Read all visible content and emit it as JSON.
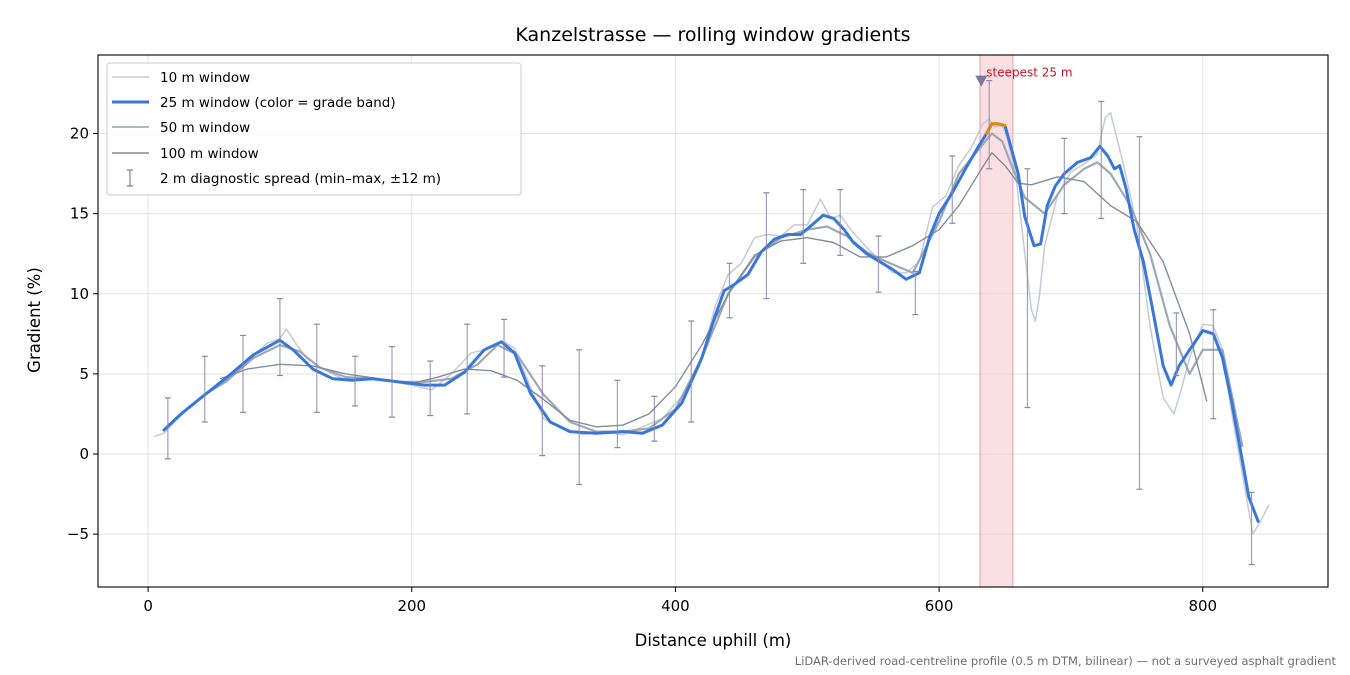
{
  "chart_data": {
    "type": "line",
    "title": "Kanzelstrasse — rolling window gradients",
    "xlabel": "Distance uphill (m)",
    "ylabel": "Gradient (%)",
    "xlim": [
      -38,
      895
    ],
    "ylim": [
      -8.3,
      24.9
    ],
    "xticks": [
      0,
      200,
      400,
      600,
      800
    ],
    "yticks": [
      -5,
      0,
      5,
      10,
      15,
      20
    ],
    "ytick_labels": [
      "−5",
      "0",
      "5",
      "10",
      "15",
      "20"
    ],
    "grid": true,
    "legend_position": "upper-left",
    "footnote": "LiDAR-derived road-centreline profile (0.5 m DTM, bilinear) — not a surveyed asphalt gradient",
    "series": [
      {
        "name": "10 m window",
        "color": "#c5cad5",
        "x": [
          5,
          12,
          20,
          30,
          45,
          60,
          75,
          90,
          100,
          105,
          112,
          120,
          135,
          150,
          165,
          180,
          200,
          215,
          230,
          245,
          255,
          265,
          270,
          278,
          290,
          300,
          315,
          330,
          345,
          360,
          375,
          390,
          405,
          420,
          430,
          440,
          450,
          460,
          470,
          480,
          490,
          500,
          510,
          518,
          525,
          535,
          545,
          555,
          565,
          575,
          585,
          595,
          605,
          615,
          625,
          633,
          638,
          642,
          648,
          652,
          658,
          665,
          670,
          673,
          676,
          680,
          690,
          700,
          710,
          720,
          726,
          730,
          740,
          750,
          760,
          770,
          778,
          783,
          790,
          800,
          808,
          815,
          822,
          830,
          838,
          845,
          850
        ],
        "y": [
          1.1,
          1.3,
          2.0,
          2.8,
          3.8,
          4.5,
          5.8,
          6.9,
          7.2,
          7.8,
          6.9,
          6.0,
          5.2,
          4.6,
          4.7,
          4.6,
          4.3,
          4.0,
          5.0,
          6.3,
          6.5,
          6.9,
          7.0,
          6.6,
          4.2,
          2.2,
          1.6,
          1.2,
          1.4,
          1.2,
          1.7,
          2.2,
          3.6,
          6.0,
          9.2,
          11.2,
          11.9,
          13.5,
          13.7,
          13.6,
          14.3,
          14.3,
          15.9,
          14.7,
          14.9,
          13.8,
          12.9,
          12.1,
          11.3,
          11.3,
          12.0,
          15.4,
          16.1,
          18.0,
          19.2,
          20.6,
          20.9,
          20.4,
          20.5,
          19.6,
          17.5,
          12.5,
          9.0,
          8.3,
          9.8,
          13.0,
          16.2,
          17.6,
          18.1,
          18.7,
          21.0,
          21.3,
          18.0,
          14.3,
          8.0,
          3.5,
          2.5,
          3.8,
          6.0,
          8.1,
          8.0,
          6.5,
          2.5,
          -1.2,
          -5.0,
          -4.0,
          -3.2
        ]
      },
      {
        "name": "25 m window (color = grade band)",
        "color": "#3a78d6",
        "band_color": "#e08b0c",
        "x": [
          12,
          25,
          40,
          60,
          80,
          100,
          110,
          125,
          140,
          155,
          170,
          190,
          210,
          225,
          240,
          255,
          268,
          278,
          290,
          305,
          320,
          340,
          360,
          375,
          390,
          405,
          420,
          430,
          437,
          445,
          455,
          465,
          475,
          485,
          495,
          505,
          512,
          520,
          528,
          535,
          545,
          555,
          565,
          575,
          585,
          593,
          600,
          610,
          620,
          630,
          636,
          640,
          645,
          650,
          655,
          660,
          665,
          672,
          677,
          682,
          688,
          695,
          705,
          715,
          722,
          728,
          733,
          737,
          742,
          748,
          755,
          762,
          770,
          776,
          782,
          790,
          800,
          808,
          815,
          822,
          828,
          835,
          842
        ],
        "y": [
          1.5,
          2.5,
          3.5,
          4.8,
          6.2,
          7.1,
          6.5,
          5.3,
          4.7,
          4.6,
          4.7,
          4.5,
          4.3,
          4.3,
          5.1,
          6.5,
          7.0,
          6.3,
          3.8,
          2.0,
          1.4,
          1.3,
          1.4,
          1.3,
          1.8,
          3.2,
          6.0,
          8.6,
          10.2,
          10.6,
          11.2,
          12.6,
          13.4,
          13.7,
          13.7,
          14.4,
          14.9,
          14.7,
          14.0,
          13.2,
          12.5,
          12.0,
          11.5,
          10.9,
          11.3,
          13.6,
          15.0,
          16.3,
          17.8,
          19.2,
          20.0,
          20.6,
          20.6,
          20.5,
          19.0,
          17.5,
          14.8,
          13.0,
          13.1,
          15.5,
          16.7,
          17.5,
          18.2,
          18.5,
          19.2,
          18.6,
          17.8,
          18.0,
          16.5,
          14.0,
          12.0,
          9.0,
          5.5,
          4.3,
          5.5,
          6.5,
          7.7,
          7.5,
          6.0,
          3.2,
          0.5,
          -2.7,
          -4.2
        ],
        "highlight_x_range": [
          634,
          654
        ]
      },
      {
        "name": "50 m window",
        "color": "#9aa3b2",
        "x": [
          25,
          45,
          60,
          80,
          100,
          115,
          130,
          150,
          170,
          190,
          210,
          230,
          250,
          265,
          280,
          300,
          320,
          340,
          360,
          380,
          400,
          420,
          440,
          460,
          480,
          500,
          515,
          530,
          545,
          560,
          580,
          600,
          615,
          630,
          640,
          648,
          655,
          665,
          680,
          695,
          710,
          720,
          730,
          745,
          760,
          775,
          790,
          800,
          815,
          830
        ],
        "y": [
          2.5,
          3.8,
          4.6,
          6.0,
          6.8,
          6.4,
          5.4,
          4.8,
          4.7,
          4.5,
          4.5,
          4.7,
          5.6,
          6.8,
          6.2,
          3.7,
          2.0,
          1.4,
          1.4,
          1.6,
          2.8,
          6.0,
          10.0,
          12.3,
          13.5,
          14.0,
          14.2,
          13.6,
          12.6,
          12.0,
          11.3,
          14.5,
          17.5,
          19.0,
          20.0,
          19.5,
          18.0,
          16.0,
          15.0,
          16.8,
          17.8,
          18.2,
          17.5,
          15.5,
          12.5,
          8.0,
          5.0,
          6.5,
          6.5,
          0.5
        ]
      },
      {
        "name": "100 m window",
        "color": "#858c9b",
        "x": [
          55,
          75,
          100,
          125,
          150,
          175,
          200,
          220,
          240,
          260,
          280,
          300,
          320,
          340,
          360,
          380,
          400,
          420,
          440,
          460,
          480,
          500,
          520,
          540,
          560,
          580,
          600,
          615,
          630,
          640,
          650,
          660,
          670,
          690,
          710,
          730,
          750,
          770,
          790,
          803
        ],
        "y": [
          4.7,
          5.3,
          5.6,
          5.5,
          5.0,
          4.7,
          4.4,
          4.8,
          5.3,
          5.2,
          4.6,
          3.4,
          2.1,
          1.7,
          1.8,
          2.5,
          4.2,
          6.8,
          10.0,
          12.4,
          13.3,
          13.5,
          13.2,
          12.3,
          12.3,
          13.0,
          14.0,
          15.5,
          17.5,
          18.8,
          18.0,
          16.9,
          16.8,
          17.3,
          17.0,
          15.5,
          14.5,
          12.0,
          7.5,
          3.3
        ]
      },
      {
        "name": "2 m diagnostic spread (min–max, ±12 m)",
        "color": "#8b86aa",
        "type": "errorbar",
        "x": [
          15,
          43,
          72,
          100,
          128,
          157,
          185,
          214,
          242,
          270,
          299,
          327,
          356,
          384,
          412,
          441,
          469,
          497,
          525,
          554,
          582,
          610,
          638,
          667,
          695,
          723,
          752,
          780,
          808,
          837
        ],
        "y": [
          1.6,
          4.0,
          5.0,
          7.2,
          5.0,
          4.6,
          4.5,
          4.2,
          5.3,
          6.5,
          2.7,
          1.4,
          2.5,
          2.2,
          5.2,
          10.0,
          13.0,
          14.2,
          14.5,
          11.8,
          10.8,
          16.5,
          20.4,
          10.3,
          17.6,
          18.3,
          8.8,
          6.9,
          5.7,
          -4.6
        ],
        "ymin": [
          -0.3,
          2.0,
          2.6,
          4.9,
          2.6,
          3.0,
          2.3,
          2.4,
          2.5,
          4.8,
          -0.1,
          -1.9,
          0.4,
          0.8,
          2.0,
          8.5,
          9.7,
          11.9,
          12.4,
          10.1,
          8.7,
          14.4,
          17.8,
          2.9,
          15.0,
          14.7,
          -2.2,
          4.9,
          2.2,
          -6.9
        ],
        "ymax": [
          3.5,
          6.1,
          7.4,
          9.7,
          8.1,
          6.1,
          6.7,
          5.8,
          8.1,
          8.4,
          5.5,
          6.5,
          4.6,
          3.6,
          8.3,
          11.9,
          16.3,
          16.5,
          16.5,
          13.6,
          11.4,
          18.6,
          23.3,
          17.8,
          19.7,
          22.0,
          19.8,
          8.8,
          9.0,
          -2.4
        ]
      }
    ],
    "annotations": [
      {
        "text": "steepest 25 m",
        "x": 632,
        "y": 23.3,
        "color": "#c4162a"
      }
    ],
    "highlight_region": {
      "x_start": 631,
      "x_end": 656,
      "color": "#f5c7cc"
    }
  }
}
